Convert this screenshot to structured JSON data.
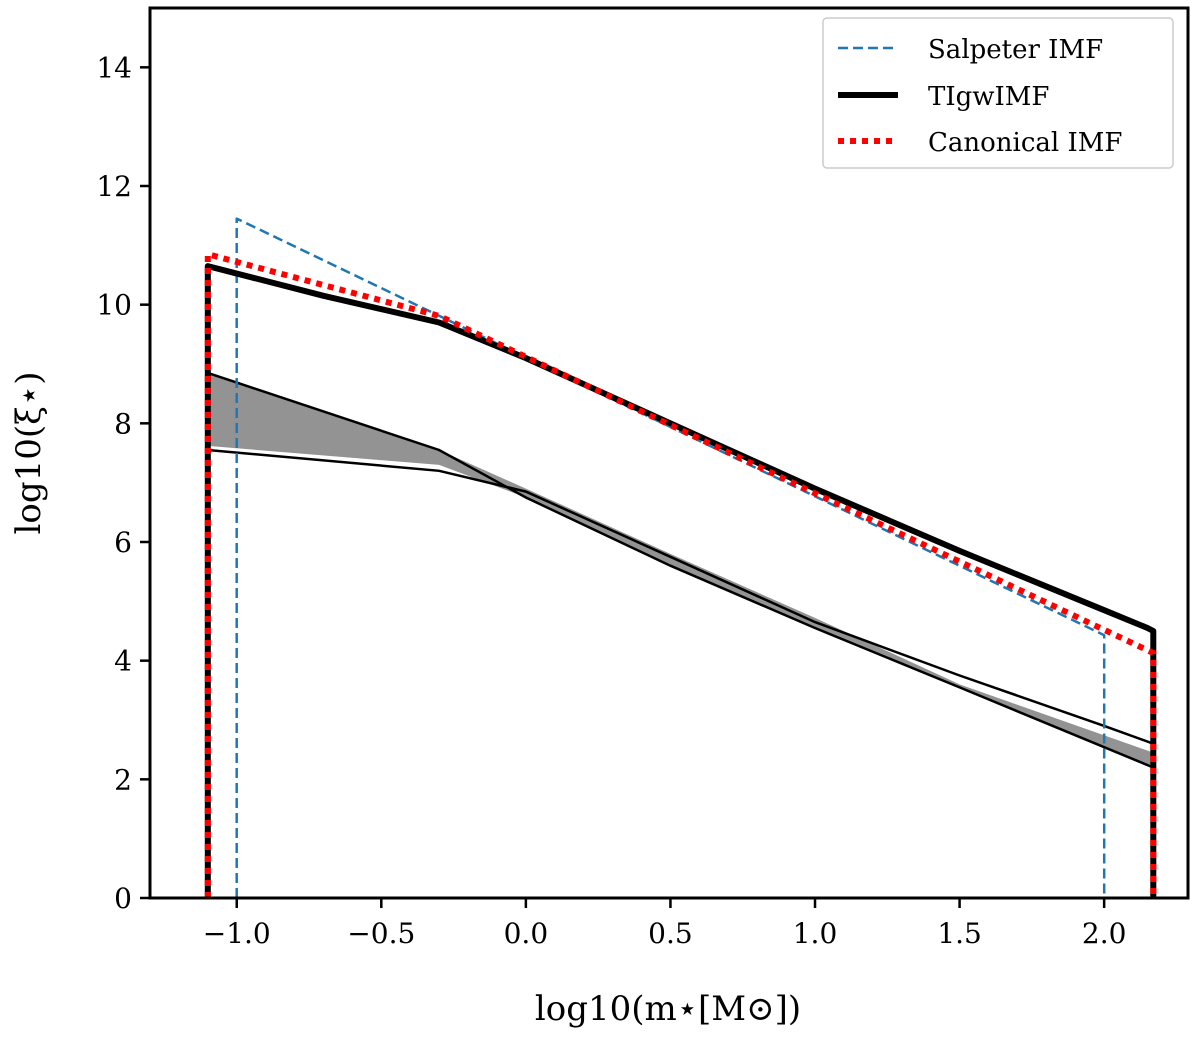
{
  "chart_data": {
    "type": "line",
    "xlabel": "log10(m⋆[M⊙])",
    "ylabel": "log10(ξ⋆)",
    "xlim": [
      -1.3,
      2.29
    ],
    "ylim": [
      0,
      15
    ],
    "xticks": [
      "−1.0",
      "−0.5",
      "0.0",
      "0.5",
      "1.0",
      "1.5",
      "2.0"
    ],
    "xtick_values": [
      -1.0,
      -0.5,
      0.0,
      0.5,
      1.0,
      1.5,
      2.0
    ],
    "yticks": [
      "0",
      "2",
      "4",
      "6",
      "8",
      "10",
      "12",
      "14"
    ],
    "ytick_values": [
      0,
      2,
      4,
      6,
      8,
      10,
      12,
      14
    ],
    "grid": false,
    "legend_placement": "top-right",
    "series": [
      {
        "name": "Salpeter IMF",
        "color": "#1f77b4",
        "style": "dashed",
        "points": [
          [
            -1.0,
            0
          ],
          [
            -1.0,
            11.45
          ],
          [
            2.0,
            4.43
          ],
          [
            2.0,
            0
          ]
        ]
      },
      {
        "name": "TIgwIMF",
        "color": "#000000",
        "style": "solid-thick",
        "points": [
          [
            -1.1,
            0
          ],
          [
            -1.1,
            10.65
          ],
          [
            -0.7,
            10.15
          ],
          [
            -0.3,
            9.7
          ],
          [
            0.0,
            9.1
          ],
          [
            0.5,
            8.0
          ],
          [
            1.0,
            6.9
          ],
          [
            1.5,
            5.85
          ],
          [
            2.0,
            4.85
          ],
          [
            2.15,
            4.55
          ],
          [
            2.17,
            4.5
          ],
          [
            2.17,
            0
          ]
        ]
      },
      {
        "name": "Canonical IMF",
        "color": "#ff0000",
        "style": "dotted",
        "points": [
          [
            -1.1,
            0
          ],
          [
            -1.1,
            10.85
          ],
          [
            -0.3,
            9.81
          ],
          [
            2.17,
            4.13
          ],
          [
            2.17,
            0
          ]
        ]
      }
    ],
    "extra_lines": [
      {
        "color": "#000000",
        "points": [
          [
            -1.1,
            8.85
          ],
          [
            -0.3,
            7.55
          ],
          [
            0.0,
            6.75
          ],
          [
            0.5,
            5.6
          ],
          [
            1.0,
            4.55
          ],
          [
            1.5,
            3.55
          ],
          [
            2.17,
            2.2
          ]
        ]
      },
      {
        "color": "#000000",
        "points": [
          [
            -1.1,
            7.55
          ],
          [
            -0.3,
            7.2
          ],
          [
            0.0,
            6.85
          ],
          [
            0.5,
            5.75
          ],
          [
            1.0,
            4.65
          ],
          [
            1.5,
            3.75
          ],
          [
            2.0,
            2.9
          ],
          [
            2.17,
            2.6
          ]
        ]
      }
    ],
    "band": {
      "color": "#939393",
      "upper": [
        [
          -1.1,
          8.85
        ],
        [
          -0.3,
          7.55
        ],
        [
          0.0,
          6.9
        ],
        [
          0.5,
          5.8
        ],
        [
          1.0,
          4.72
        ],
        [
          1.5,
          3.6
        ],
        [
          2.17,
          2.45
        ]
      ],
      "lower": [
        [
          -1.1,
          7.62
        ],
        [
          -0.3,
          7.3
        ],
        [
          0.0,
          6.75
        ],
        [
          0.5,
          5.6
        ],
        [
          1.0,
          4.55
        ],
        [
          1.5,
          3.55
        ],
        [
          2.17,
          2.2
        ]
      ]
    }
  }
}
